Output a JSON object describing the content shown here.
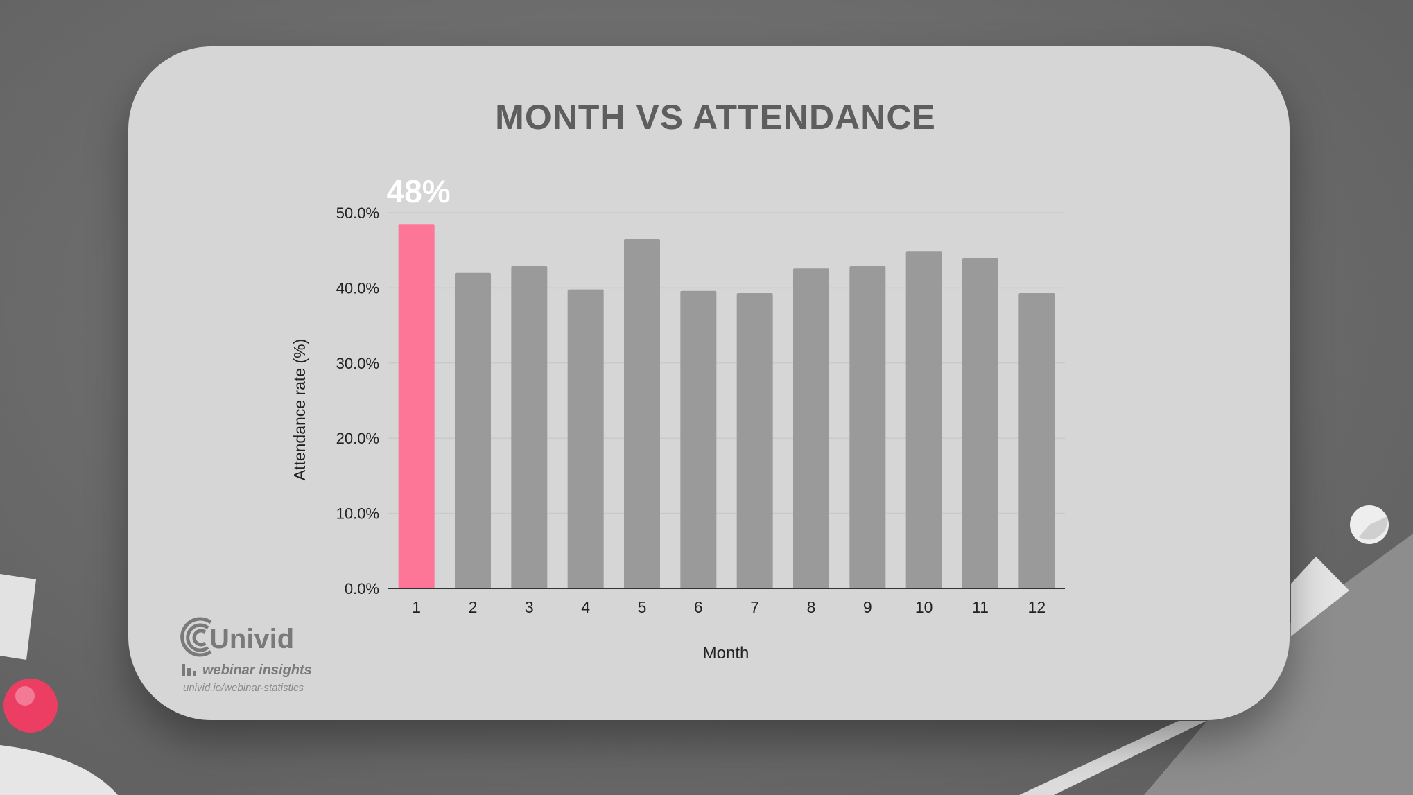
{
  "chart_data": {
    "type": "bar",
    "title": "MONTH VS ATTENDANCE",
    "xlabel": "Month",
    "ylabel": "Attendance rate (%)",
    "categories": [
      "1",
      "2",
      "3",
      "4",
      "5",
      "6",
      "7",
      "8",
      "9",
      "10",
      "11",
      "12"
    ],
    "values": [
      48.5,
      42.0,
      42.9,
      39.8,
      46.5,
      39.6,
      39.3,
      42.6,
      42.9,
      44.9,
      44.0,
      39.3
    ],
    "ylim": [
      0,
      50
    ],
    "yticks": [
      "0.0%",
      "10.0%",
      "20.0%",
      "30.0%",
      "40.0%",
      "50.0%"
    ],
    "highlight_index": 0,
    "highlight_label": "48%",
    "grid": true,
    "colors": {
      "bar": "#9a9a9a",
      "highlight": "#fd7597",
      "axis": "#333333",
      "grid": "#c9c9c9"
    }
  },
  "logo": {
    "name": "Univid",
    "tagline": "webinar insights",
    "url": "univid.io/webinar-statistics"
  }
}
